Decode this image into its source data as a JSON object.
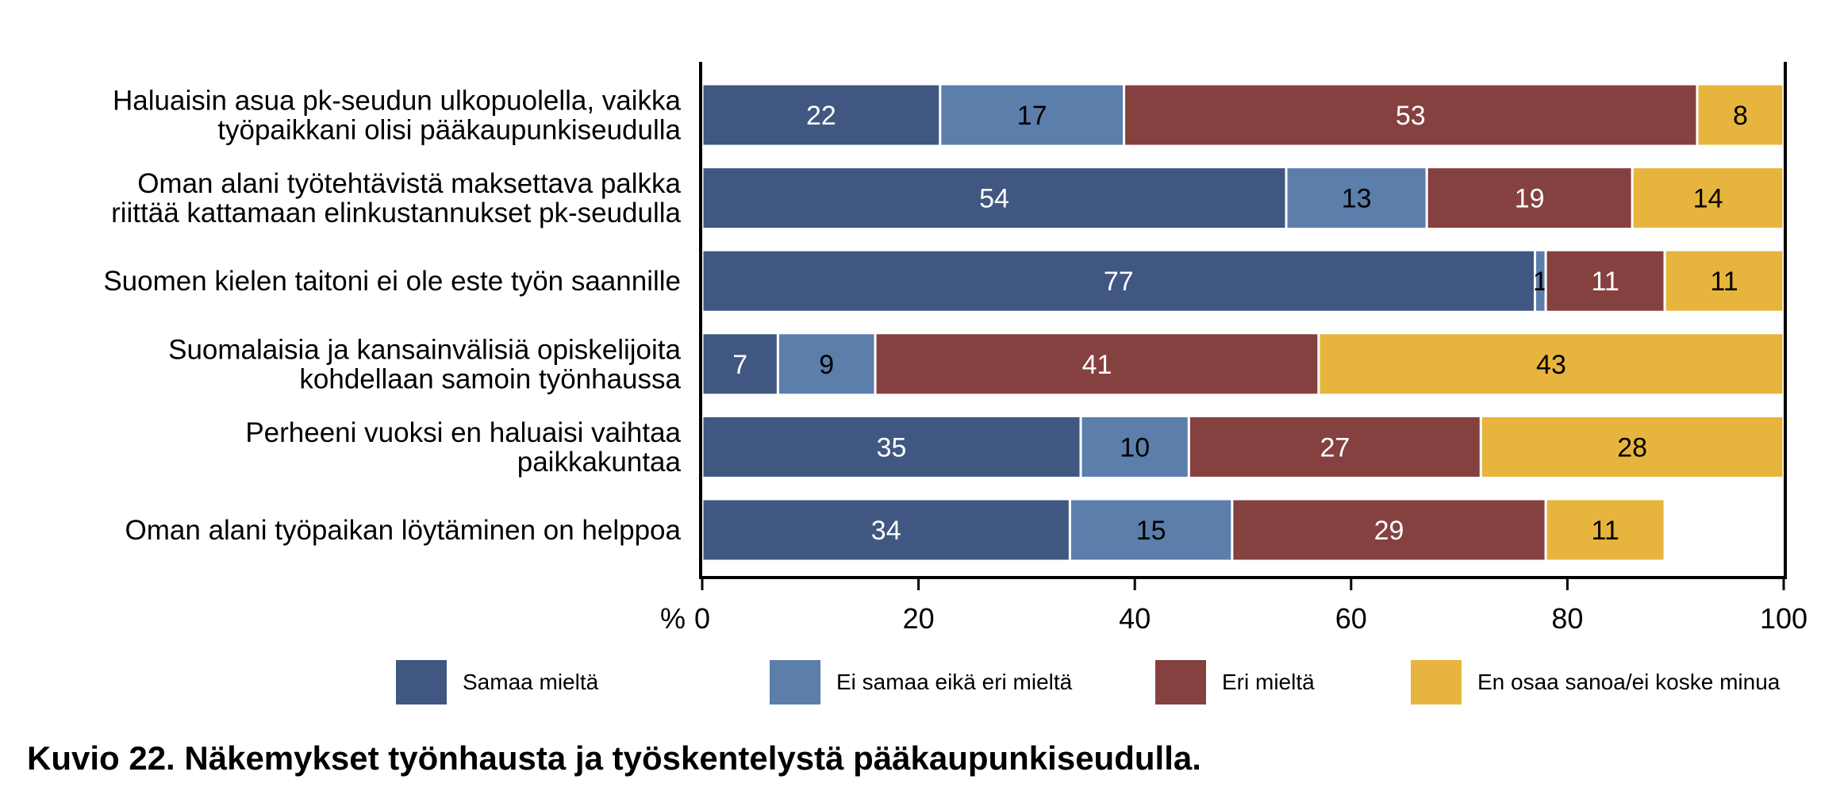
{
  "chart_data": {
    "type": "bar",
    "orientation": "horizontal",
    "stacked": true,
    "categories": [
      [
        "Haluaisin asua pk-seudun ulkopuolella, vaikka",
        "työpaikkani olisi pääkaupunkiseudulla"
      ],
      [
        "Oman alani työtehtävistä maksettava palkka",
        "riittää kattamaan elinkustannukset pk-seudulla"
      ],
      [
        "Suomen kielen taitoni ei ole este työn saannille"
      ],
      [
        "Suomalaisia ja kansainvälisiä opiskelijoita",
        "kohdellaan samoin työnhaussa"
      ],
      [
        "Perheeni vuoksi en haluaisi vaihtaa",
        "paikkakuntaa"
      ],
      [
        "Oman alani työpaikan löytäminen on helppoa"
      ]
    ],
    "series": [
      {
        "name": "Samaa mieltä",
        "color": "#3f5781",
        "text_color": "#ffffff",
        "values": [
          22,
          54,
          77,
          7,
          35,
          34
        ]
      },
      {
        "name": "Ei samaa eikä eri mieltä",
        "color": "#5b7eab",
        "text_color": "#000000",
        "values": [
          17,
          13,
          1,
          9,
          10,
          15
        ]
      },
      {
        "name": "Eri mieltä",
        "color": "#854040",
        "text_color": "#ffffff",
        "values": [
          53,
          19,
          11,
          41,
          27,
          29
        ]
      },
      {
        "name": "En osaa sanoa/ei koske minua",
        "color": "#e7b53d",
        "text_color": "#000000",
        "values": [
          8,
          14,
          11,
          43,
          28,
          11
        ]
      }
    ],
    "xlim": [
      0,
      100
    ],
    "xticks": [
      0,
      20,
      40,
      60,
      80,
      100
    ],
    "xlabel": "%",
    "legend_position": "bottom",
    "grid": false
  },
  "caption": "Kuvio 22. Näkemykset työnhausta ja työskentelystä pääkaupunkiseudulla."
}
